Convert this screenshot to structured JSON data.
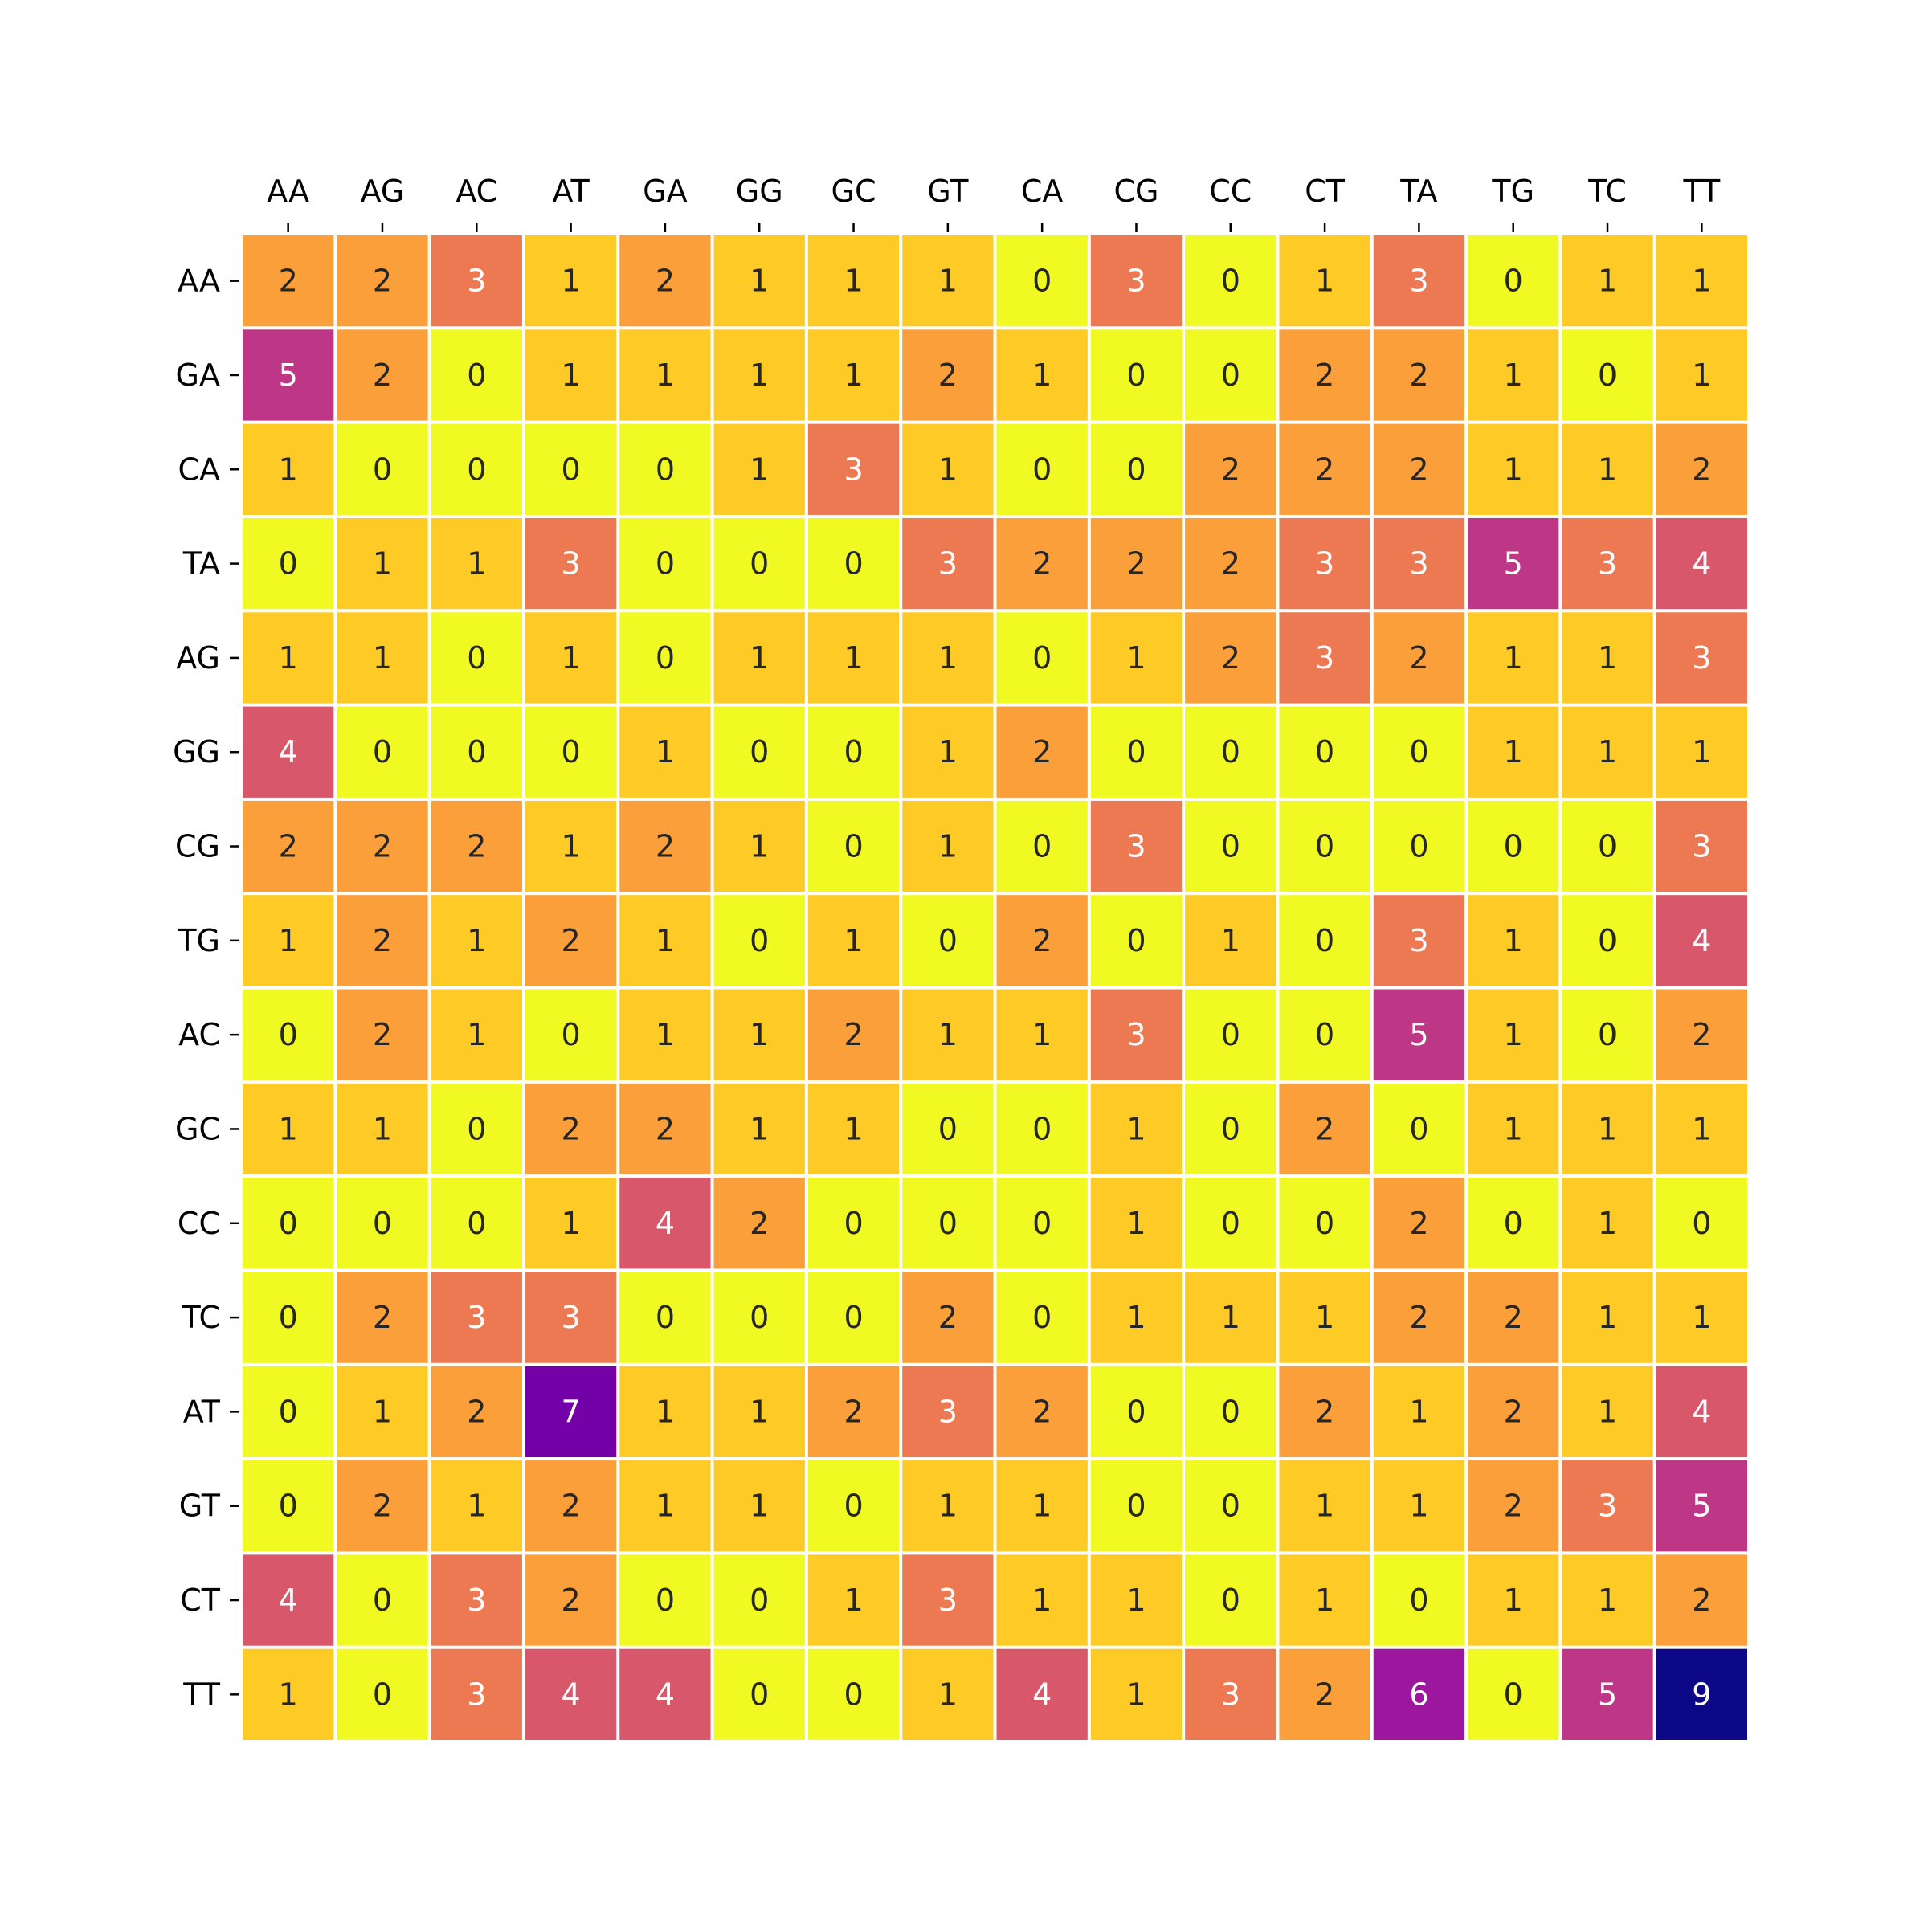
{
  "chart_data": {
    "type": "heatmap",
    "title": "",
    "xlabel": "",
    "ylabel": "",
    "x_categories": [
      "AA",
      "AG",
      "AC",
      "AT",
      "GA",
      "GG",
      "GC",
      "GT",
      "CA",
      "CG",
      "CC",
      "CT",
      "TA",
      "TG",
      "TC",
      "TT"
    ],
    "y_categories": [
      "AA",
      "GA",
      "CA",
      "TA",
      "AG",
      "GG",
      "CG",
      "TG",
      "AC",
      "GC",
      "CC",
      "TC",
      "AT",
      "GT",
      "CT",
      "TT"
    ],
    "x_tick_position": "top",
    "colormap": "plasma_r",
    "value_range": [
      0,
      9
    ],
    "colorbar": false,
    "annotated": true,
    "values": [
      [
        2,
        2,
        3,
        1,
        2,
        1,
        1,
        1,
        0,
        3,
        0,
        1,
        3,
        0,
        1,
        1
      ],
      [
        5,
        2,
        0,
        1,
        1,
        1,
        1,
        2,
        1,
        0,
        0,
        2,
        2,
        1,
        0,
        1
      ],
      [
        1,
        0,
        0,
        0,
        0,
        1,
        3,
        1,
        0,
        0,
        2,
        2,
        2,
        1,
        1,
        2
      ],
      [
        0,
        1,
        1,
        3,
        0,
        0,
        0,
        3,
        2,
        2,
        2,
        3,
        3,
        5,
        3,
        4
      ],
      [
        1,
        1,
        0,
        1,
        0,
        1,
        1,
        1,
        0,
        1,
        2,
        3,
        2,
        1,
        1,
        3
      ],
      [
        4,
        0,
        0,
        0,
        1,
        0,
        0,
        1,
        2,
        0,
        0,
        0,
        0,
        1,
        1,
        1
      ],
      [
        2,
        2,
        2,
        1,
        2,
        1,
        0,
        1,
        0,
        3,
        0,
        0,
        0,
        0,
        0,
        3
      ],
      [
        1,
        2,
        1,
        2,
        1,
        0,
        1,
        0,
        2,
        0,
        1,
        0,
        3,
        1,
        0,
        4
      ],
      [
        0,
        2,
        1,
        0,
        1,
        1,
        2,
        1,
        1,
        3,
        0,
        0,
        5,
        1,
        0,
        2
      ],
      [
        1,
        1,
        0,
        2,
        2,
        1,
        1,
        0,
        0,
        1,
        0,
        2,
        0,
        1,
        1,
        1
      ],
      [
        0,
        0,
        0,
        1,
        4,
        2,
        0,
        0,
        0,
        1,
        0,
        0,
        2,
        0,
        1,
        0
      ],
      [
        0,
        2,
        3,
        3,
        0,
        0,
        0,
        2,
        0,
        1,
        1,
        1,
        2,
        2,
        1,
        1
      ],
      [
        0,
        1,
        2,
        7,
        1,
        1,
        2,
        3,
        2,
        0,
        0,
        2,
        1,
        2,
        1,
        4
      ],
      [
        0,
        2,
        1,
        2,
        1,
        1,
        0,
        1,
        1,
        0,
        0,
        1,
        1,
        2,
        3,
        5
      ],
      [
        4,
        0,
        3,
        2,
        0,
        0,
        1,
        3,
        1,
        1,
        0,
        1,
        0,
        1,
        1,
        2
      ],
      [
        1,
        0,
        3,
        4,
        4,
        0,
        0,
        1,
        4,
        1,
        3,
        2,
        6,
        0,
        5,
        9
      ]
    ],
    "colors": {
      "0": "#f0f921",
      "1": "#fdca26",
      "2": "#fb9f3a",
      "3": "#ed7953",
      "4": "#d8576b",
      "5": "#bd3786",
      "6": "#9c179e",
      "7": "#7201a8",
      "8": "#46039f",
      "9": "#0d0887"
    },
    "cell_border_color": "#ffffff",
    "dark_text_color": "#262626",
    "light_text_color": "#ffffff"
  }
}
